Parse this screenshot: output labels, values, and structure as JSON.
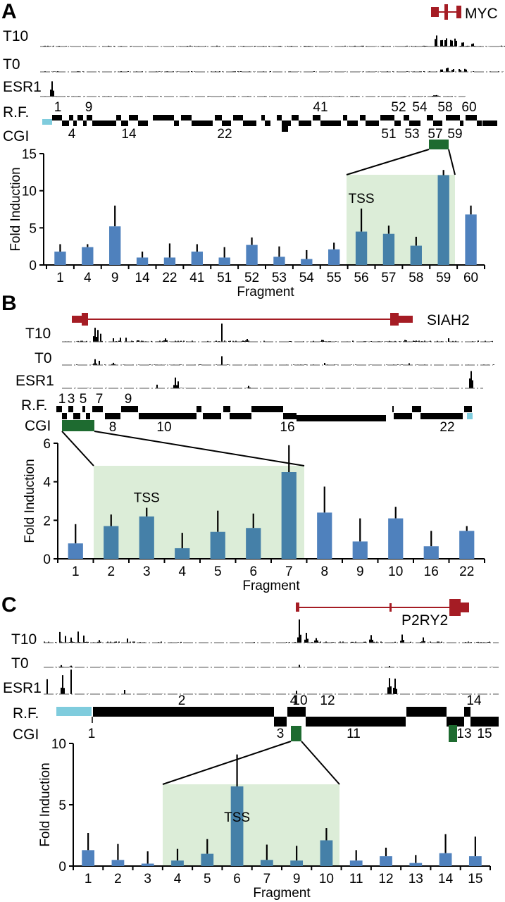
{
  "figure": {
    "track_labels": {
      "t10": "T10",
      "t0": "T0",
      "esr1": "ESR1",
      "rf": "R.F.",
      "cgi": "CGI"
    },
    "colors": {
      "bar": "#4F81BD",
      "bar_highlighted": "#4580A8",
      "highlight_region": "#DCEDD8",
      "cgi": "#1E6B30",
      "gene": "#A51C24",
      "rf_other": "#7FCCDD",
      "signal": "#000000"
    }
  },
  "chart_data": [
    {
      "panel": "A",
      "type": "bar",
      "gene": "MYC",
      "title": "",
      "xlabel": "Fragment",
      "ylabel": "Fold Induction",
      "ylim": [
        0,
        15
      ],
      "yticks": [
        0,
        5,
        10,
        15
      ],
      "categories": [
        "1",
        "4",
        "9",
        "14",
        "22",
        "41",
        "51",
        "52",
        "53",
        "54",
        "55",
        "56",
        "57",
        "58",
        "59",
        "60"
      ],
      "values": [
        1.8,
        2.4,
        5.2,
        1.0,
        1.0,
        1.8,
        1.0,
        2.7,
        1.1,
        0.8,
        2.1,
        4.5,
        4.2,
        2.6,
        12.1,
        6.8
      ],
      "error_upper": [
        2.8,
        2.8,
        8.0,
        1.8,
        2.9,
        2.8,
        2.4,
        3.7,
        2.5,
        2.0,
        3.0,
        7.6,
        5.3,
        3.8,
        12.8,
        8.0
      ],
      "highlighted": [
        "56",
        "57",
        "58",
        "59"
      ],
      "annotation": {
        "text": "TSS",
        "category": "56"
      },
      "rf_labels_top": [
        "1",
        "9",
        "41",
        "52",
        "54",
        "58",
        "60"
      ],
      "rf_labels_bottom": [
        "4",
        "14",
        "22",
        "51",
        "53",
        "57",
        "59"
      ]
    },
    {
      "panel": "B",
      "type": "bar",
      "gene": "SIAH2",
      "title": "",
      "xlabel": "Fragment",
      "ylabel": "Fold Induction",
      "ylim": [
        0,
        6
      ],
      "yticks": [
        0,
        2,
        4,
        6
      ],
      "categories": [
        "1",
        "2",
        "3",
        "4",
        "5",
        "6",
        "7",
        "8",
        "9",
        "10",
        "16",
        "22"
      ],
      "values": [
        0.8,
        1.7,
        2.2,
        0.55,
        1.4,
        1.6,
        4.5,
        2.4,
        0.9,
        2.1,
        0.65,
        1.45
      ],
      "error_upper": [
        1.8,
        2.3,
        2.65,
        1.35,
        2.5,
        2.35,
        5.9,
        3.75,
        2.1,
        2.7,
        1.45,
        1.7
      ],
      "highlighted": [
        "2",
        "3",
        "4",
        "5",
        "6",
        "7"
      ],
      "annotation": {
        "text": "TSS",
        "category": "3"
      },
      "rf_labels_top": [
        "1",
        "3",
        "5",
        "7",
        "9"
      ],
      "rf_labels_bottom": [
        "8",
        "10",
        "16",
        "22"
      ]
    },
    {
      "panel": "C",
      "type": "bar",
      "gene": "P2RY2",
      "title": "",
      "xlabel": "Fragment",
      "ylabel": "Fold Induction",
      "ylim": [
        0,
        10
      ],
      "yticks": [
        0,
        5,
        10
      ],
      "categories": [
        "1",
        "2",
        "3",
        "4",
        "5",
        "6",
        "7",
        "9",
        "10",
        "11",
        "12",
        "13",
        "14",
        "15"
      ],
      "values": [
        1.3,
        0.5,
        0.2,
        0.45,
        1.0,
        6.5,
        0.5,
        0.45,
        2.1,
        0.45,
        0.8,
        0.25,
        1.05,
        0.8
      ],
      "error_upper": [
        2.7,
        1.8,
        1.2,
        1.4,
        2.2,
        9.1,
        1.75,
        1.65,
        3.1,
        1.3,
        1.5,
        0.9,
        2.6,
        2.4
      ],
      "highlighted": [
        "4",
        "5",
        "6",
        "7",
        "9",
        "10"
      ],
      "annotation": {
        "text": "TSS",
        "category": "6"
      },
      "rf_labels_top": [
        "2",
        "4",
        "10",
        "12",
        "14"
      ],
      "rf_labels_bottom": [
        "1",
        "3",
        "11",
        "13",
        "15"
      ]
    }
  ]
}
